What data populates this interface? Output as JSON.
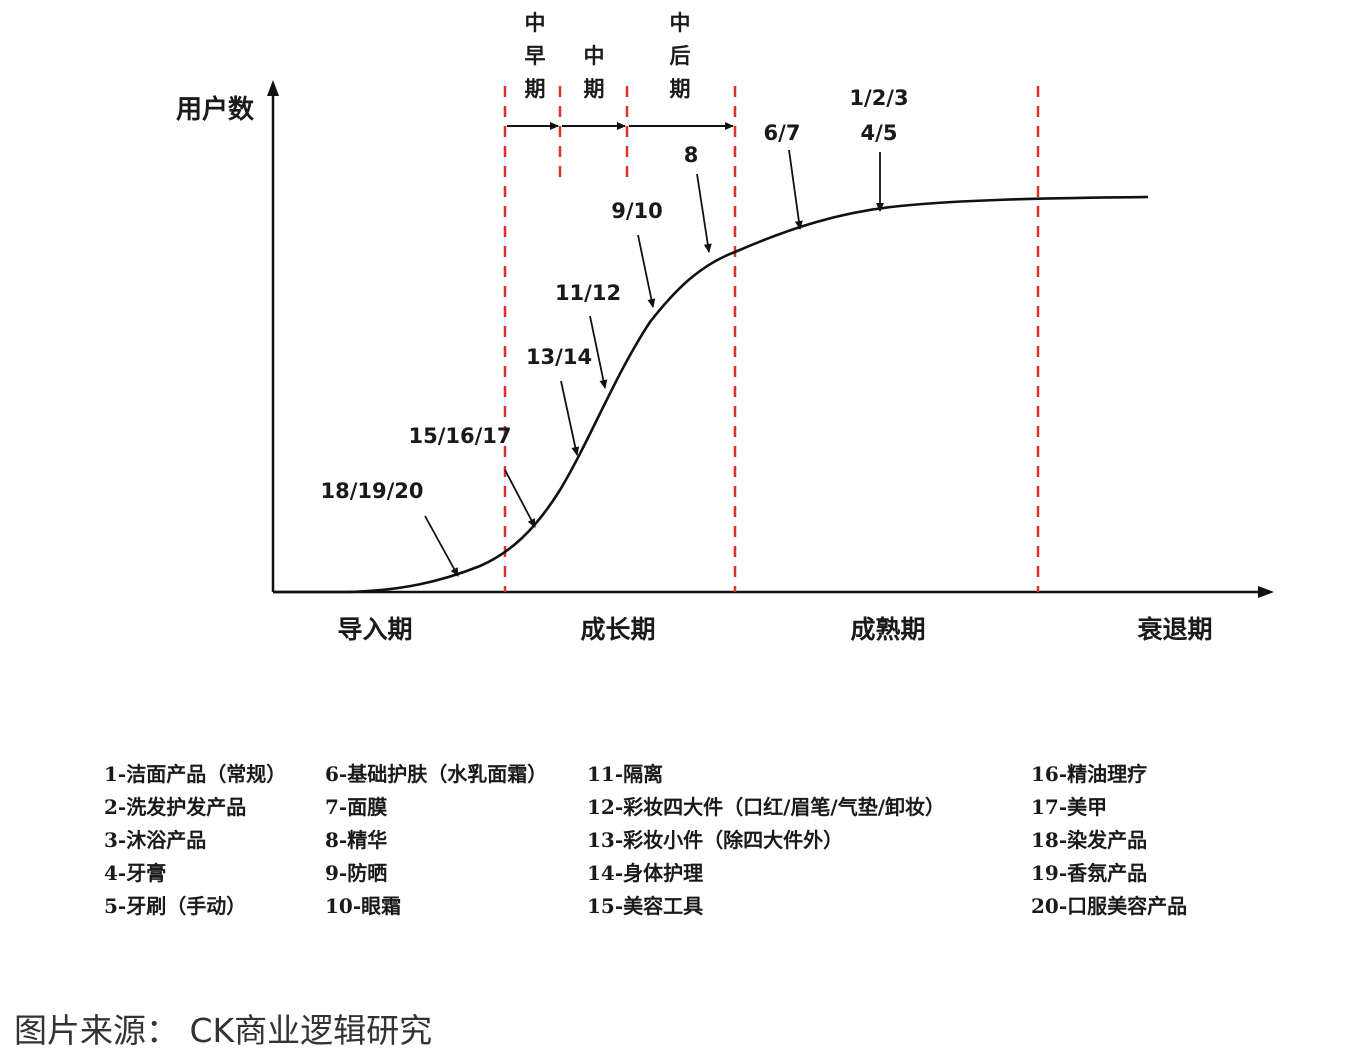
{
  "axis": {
    "y_title": "用户数"
  },
  "phases": [
    {
      "key": "intro",
      "label": "导入期"
    },
    {
      "key": "growth",
      "label": "成长期"
    },
    {
      "key": "mature",
      "label": "成熟期"
    },
    {
      "key": "decline",
      "label": "衰退期"
    }
  ],
  "growth_subphases": [
    {
      "key": "mid-early",
      "label": "中早期"
    },
    {
      "key": "middle",
      "label": "中期"
    },
    {
      "key": "mid-late",
      "label": "中后期"
    }
  ],
  "curve_points": [
    {
      "label": "18/19/20"
    },
    {
      "label": "15/16/17"
    },
    {
      "label": "13/14"
    },
    {
      "label": "11/12"
    },
    {
      "label": "9/10"
    },
    {
      "label": "8"
    },
    {
      "label": "6/7"
    },
    {
      "label": "1/2/3"
    },
    {
      "label": "4/5"
    }
  ],
  "legend": [
    [
      "1-洁面产品（常规）",
      "2-洗发护发产品",
      "3-沐浴产品",
      "4-牙膏",
      "5-牙刷（手动）"
    ],
    [
      "6-基础护肤（水乳面霜）",
      "7-面膜",
      "8-精华",
      "9-防晒",
      "10-眼霜"
    ],
    [
      "11-隔离",
      "12-彩妆四大件（口红/眉笔/气垫/卸妆）",
      "13-彩妆小件（除四大件外）",
      "14-身体护理",
      "15-美容工具"
    ],
    [
      "16-精油理疗",
      "17-美甲",
      "18-染发产品",
      "19-香氛产品",
      "20-口服美容产品"
    ]
  ],
  "source": "图片来源： CK商业逻辑研究",
  "colors": {
    "boundary_dash": "#e0302b",
    "line": "#111111",
    "text": "#1a1a1a"
  }
}
